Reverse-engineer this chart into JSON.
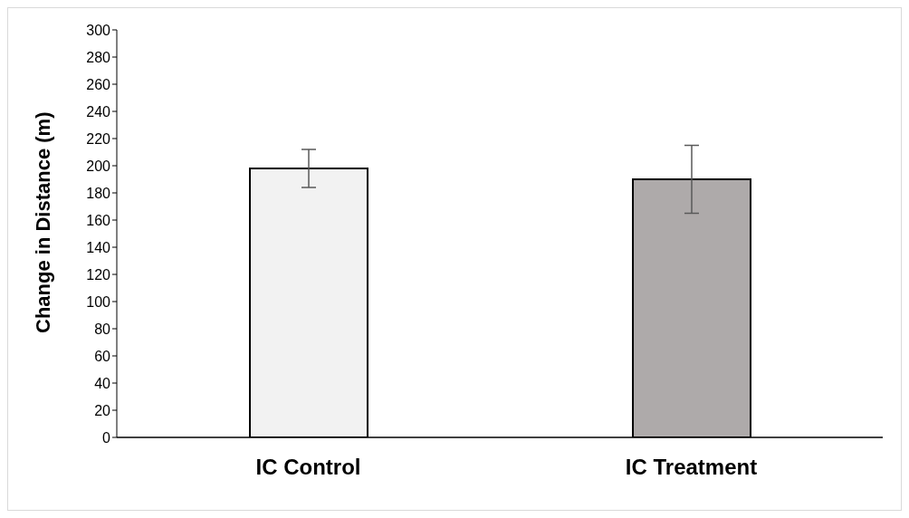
{
  "chart_data": {
    "type": "bar",
    "ylabel": "Change in Distance (m)",
    "categories": [
      "IC Control",
      "IC Treatment"
    ],
    "values": [
      198,
      190
    ],
    "colors": [
      "#f2f2f2",
      "#aeaaaa"
    ],
    "errors": [
      14,
      25
    ],
    "ylim": [
      0,
      300
    ],
    "yticks": [
      0,
      20,
      40,
      60,
      80,
      100,
      120,
      140,
      160,
      180,
      200,
      220,
      240,
      260,
      280,
      300
    ],
    "grid": false,
    "legend": false
  }
}
